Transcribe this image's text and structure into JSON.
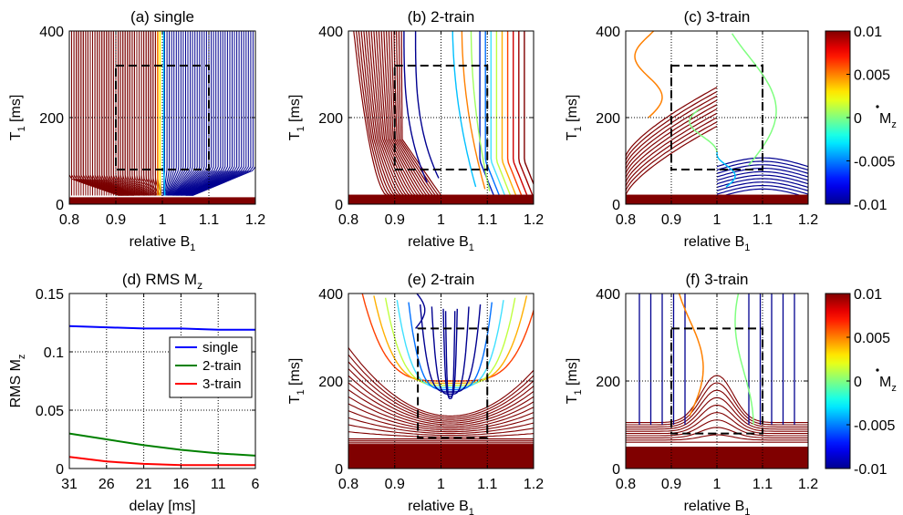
{
  "colors": {
    "single": "#0000ff",
    "two_train": "#008000",
    "three_train": "#ff0000",
    "colormap": [
      "#00008f",
      "#0000ff",
      "#0080ff",
      "#00ffff",
      "#80ff80",
      "#ffff00",
      "#ff8000",
      "#ff0000",
      "#800000"
    ]
  },
  "chart_data": [
    {
      "id": "a",
      "type": "contour",
      "title": "(a) single",
      "xlabel": "relative B",
      "xlabel_sub": "1",
      "ylabel": "T",
      "ylabel_sub": "1",
      "ylabel_suffix": " [ms]",
      "xlim": [
        0.8,
        1.2
      ],
      "ylim": [
        0,
        400
      ],
      "xticks": [
        0.8,
        0.9,
        1,
        1.1,
        1.2
      ],
      "xtick_labels": [
        "0.8",
        "0.9",
        "1",
        "1.1",
        "1.2"
      ],
      "yticks": [
        0,
        200,
        400
      ],
      "ytick_labels": [
        "0",
        "200",
        "400"
      ],
      "grid": true,
      "target_region": {
        "b1": [
          0.9,
          1.1
        ],
        "t1": [
          80,
          320
        ]
      },
      "zero_contour_b1": 1.0
    },
    {
      "id": "b",
      "type": "contour",
      "title": "(b) 2-train",
      "xlabel": "relative B",
      "xlabel_sub": "1",
      "ylabel": "T",
      "ylabel_sub": "1",
      "ylabel_suffix": " [ms]",
      "xlim": [
        0.8,
        1.2
      ],
      "ylim": [
        0,
        400
      ],
      "xticks": [
        0.8,
        0.9,
        1,
        1.1,
        1.2
      ],
      "xtick_labels": [
        "0.8",
        "0.9",
        "1",
        "1.1",
        "1.2"
      ],
      "yticks": [
        0,
        200,
        400
      ],
      "ytick_labels": [
        "0",
        "200",
        "400"
      ],
      "grid": true,
      "target_region": {
        "b1": [
          0.9,
          1.1
        ],
        "t1": [
          80,
          320
        ]
      },
      "zero_contour_b1": 1.1
    },
    {
      "id": "c",
      "type": "contour",
      "title": "(c) 3-train",
      "xlabel": "relative B",
      "xlabel_sub": "1",
      "ylabel": "T",
      "ylabel_sub": "1",
      "ylabel_suffix": " [ms]",
      "xlim": [
        0.8,
        1.2
      ],
      "ylim": [
        0,
        400
      ],
      "xticks": [
        0.8,
        0.9,
        1,
        1.1,
        1.2
      ],
      "xtick_labels": [
        "0.8",
        "0.9",
        "1",
        "1.1",
        "1.2"
      ],
      "yticks": [
        0,
        200,
        400
      ],
      "ytick_labels": [
        "0",
        "200",
        "400"
      ],
      "grid": true,
      "target_region": {
        "b1": [
          0.9,
          1.1
        ],
        "t1": [
          80,
          320
        ]
      },
      "zero_contour_b1": 1.08
    },
    {
      "id": "d",
      "type": "line",
      "title": "(d) RMS M",
      "title_sub": "z",
      "xlabel": "delay [ms]",
      "ylabel": "RMS M",
      "ylabel_sub": "z",
      "x": [
        31,
        26,
        21,
        16,
        11,
        6
      ],
      "xlim": [
        31,
        6
      ],
      "ylim": [
        0,
        0.15
      ],
      "xticks": [
        31,
        26,
        21,
        16,
        11,
        6
      ],
      "xtick_labels": [
        "31",
        "26",
        "21",
        "16",
        "11",
        "6"
      ],
      "yticks": [
        0,
        0.05,
        0.1,
        0.15
      ],
      "ytick_labels": [
        "0",
        "0.05",
        "0.1",
        "0.15"
      ],
      "grid": true,
      "legend_position": "center-right",
      "series": [
        {
          "name": "single",
          "key": "single",
          "values": [
            0.122,
            0.121,
            0.12,
            0.12,
            0.119,
            0.119
          ]
        },
        {
          "name": "2-train",
          "key": "two_train",
          "values": [
            0.03,
            0.025,
            0.02,
            0.016,
            0.013,
            0.011
          ]
        },
        {
          "name": "3-train",
          "key": "three_train",
          "values": [
            0.01,
            0.006,
            0.004,
            0.003,
            0.003,
            0.003
          ]
        }
      ]
    },
    {
      "id": "e",
      "type": "contour",
      "title": "(e) 2-train",
      "xlabel": "relative B",
      "xlabel_sub": "1",
      "ylabel": "T",
      "ylabel_sub": "1",
      "ylabel_suffix": " [ms]",
      "xlim": [
        0.8,
        1.2
      ],
      "ylim": [
        0,
        400
      ],
      "xticks": [
        0.8,
        0.9,
        1,
        1.1,
        1.2
      ],
      "xtick_labels": [
        "0.8",
        "0.9",
        "1",
        "1.1",
        "1.2"
      ],
      "yticks": [
        0,
        200,
        400
      ],
      "ytick_labels": [
        "0",
        "200",
        "400"
      ],
      "grid": true,
      "target_region": {
        "b1": [
          0.95,
          1.1
        ],
        "t1": [
          70,
          320
        ]
      },
      "zero_contour_b1": 1.1
    },
    {
      "id": "f",
      "type": "contour",
      "title": "(f) 3-train",
      "xlabel": "relative B",
      "xlabel_sub": "1",
      "ylabel": "T",
      "ylabel_sub": "1",
      "ylabel_suffix": " [ms]",
      "xlim": [
        0.8,
        1.2
      ],
      "ylim": [
        0,
        400
      ],
      "xticks": [
        0.8,
        0.9,
        1,
        1.1,
        1.2
      ],
      "xtick_labels": [
        "0.8",
        "0.9",
        "1",
        "1.1",
        "1.2"
      ],
      "yticks": [
        0,
        200,
        400
      ],
      "ytick_labels": [
        "0",
        "200",
        "400"
      ],
      "grid": true,
      "target_region": {
        "b1": [
          0.9,
          1.1
        ],
        "t1": [
          80,
          320
        ]
      },
      "zero_contour_b1": 1.08
    }
  ],
  "colorbars": [
    {
      "id": "cb1",
      "min": -0.01,
      "max": 0.01,
      "ticks": [
        0.01,
        0.005,
        0,
        -0.005,
        -0.01
      ],
      "tick_labels": [
        "0.01",
        "0.005",
        "0",
        "-0.005",
        "-0.01"
      ],
      "label": "M",
      "label_sub": "z"
    },
    {
      "id": "cb2",
      "min": -0.01,
      "max": 0.01,
      "ticks": [
        0.01,
        0.005,
        0,
        -0.005,
        -0.01
      ],
      "tick_labels": [
        "0.01",
        "0.005",
        "0",
        "-0.005",
        "-0.01"
      ],
      "label": "M",
      "label_sub": "z"
    }
  ]
}
